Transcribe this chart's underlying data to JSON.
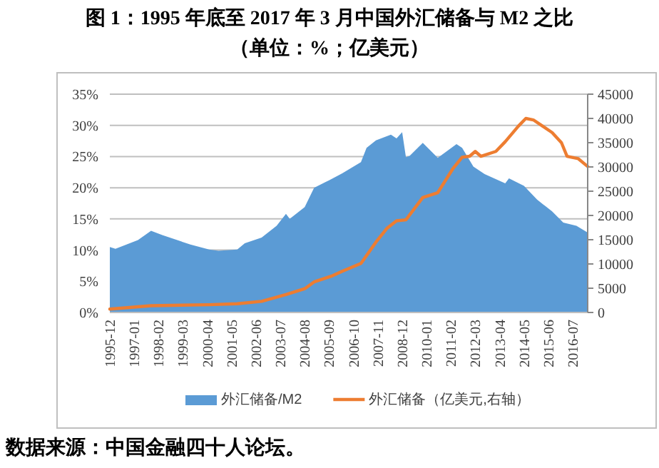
{
  "chart_data": {
    "type": "area",
    "title": "图 1：1995 年底至 2017 年 3 月中国外汇储备与 M2 之比",
    "subtitle": "（单位：%；亿美元）",
    "annotations": [
      "数据来源：中国金融四十人论坛。"
    ],
    "xlim": [
      "1995-12",
      "2017-03"
    ],
    "xticks": [
      {
        "value": "1995-12",
        "label": "1995-12"
      },
      {
        "value": "1997-01",
        "label": "1997-01"
      },
      {
        "value": "1998-02",
        "label": "1998-02"
      },
      {
        "value": "1999-03",
        "label": "1999-03"
      },
      {
        "value": "2000-04",
        "label": "2000-04"
      },
      {
        "value": "2001-05",
        "label": "2001-05"
      },
      {
        "value": "2002-06",
        "label": "2002-06"
      },
      {
        "value": "2003-07",
        "label": "2003-07"
      },
      {
        "value": "2004-08",
        "label": "2004-08"
      },
      {
        "value": "2005-09",
        "label": "2005-09"
      },
      {
        "value": "2006-10",
        "label": "2006-10"
      },
      {
        "value": "2007-11",
        "label": "2007-11"
      },
      {
        "value": "2008-12",
        "label": "2008-12"
      },
      {
        "value": "2010-01",
        "label": "2010-01"
      },
      {
        "value": "2011-02",
        "label": "2011-02"
      },
      {
        "value": "2012-03",
        "label": "2012-03"
      },
      {
        "value": "2013-04",
        "label": "2013-04"
      },
      {
        "value": "2014-05",
        "label": "2014-05"
      },
      {
        "value": "2015-06",
        "label": "2015-06"
      },
      {
        "value": "2016-07",
        "label": "2016-07"
      }
    ],
    "ylim": [
      0,
      35
    ],
    "yticks": [
      {
        "value": 0,
        "label": "0%"
      },
      {
        "value": 5,
        "label": "5%"
      },
      {
        "value": 10,
        "label": "10%"
      },
      {
        "value": 15,
        "label": "15%"
      },
      {
        "value": 20,
        "label": "20%"
      },
      {
        "value": 25,
        "label": "25%"
      },
      {
        "value": 30,
        "label": "30%"
      },
      {
        "value": 35,
        "label": "35%"
      }
    ],
    "y2lim": [
      0,
      45000
    ],
    "y2ticks": [
      0,
      5000,
      10000,
      15000,
      20000,
      25000,
      30000,
      35000,
      40000,
      45000
    ],
    "grid": "y",
    "legend": "bottom",
    "series": [
      {
        "name": "外汇储备/M2",
        "color": "#5b9bd5",
        "x": [
          "1995-12",
          "1996-03",
          "1997-03",
          "1997-10",
          "1998-04",
          "1999-07",
          "2000-05",
          "2000-10",
          "2001-08",
          "2001-12",
          "2002-09",
          "2003-05",
          "2003-10",
          "2003-12",
          "2004-08",
          "2005-01",
          "2005-09",
          "2006-04",
          "2007-02",
          "2007-05",
          "2007-10",
          "2008-06",
          "2008-09",
          "2008-12",
          "2009-02",
          "2009-04",
          "2009-11",
          "2010-07",
          "2011-05",
          "2011-08",
          "2012-02",
          "2012-08",
          "2013-07",
          "2013-09",
          "2014-05",
          "2014-12",
          "2015-08",
          "2016-02",
          "2016-09",
          "2017-03"
        ],
        "values": [
          10.5,
          10.2,
          11.6,
          13.1,
          12.4,
          10.9,
          10.1,
          9.9,
          10.1,
          11.1,
          12.0,
          13.9,
          15.8,
          15.0,
          16.9,
          20.0,
          21.2,
          22.3,
          24.1,
          26.4,
          27.6,
          28.5,
          27.9,
          28.9,
          24.9,
          25.1,
          27.2,
          24.8,
          27.0,
          26.4,
          23.4,
          22.2,
          20.7,
          21.5,
          20.3,
          18.1,
          16.2,
          14.4,
          13.9,
          12.8
        ]
      },
      {
        "name": "外汇储备（亿美元,右轴）",
        "type": "line",
        "axis": "y2",
        "color": "#ed7d31",
        "x": [
          "1995-12",
          "1997-10",
          "2000-05",
          "2001-08",
          "2002-09",
          "2003-10",
          "2004-08",
          "2005-01",
          "2005-11",
          "2006-04",
          "2007-02",
          "2007-10",
          "2008-04",
          "2008-09",
          "2009-02",
          "2009-11",
          "2010-07",
          "2011-03",
          "2011-08",
          "2011-12",
          "2012-03",
          "2012-06",
          "2013-02",
          "2013-07",
          "2014-02",
          "2014-06",
          "2014-10",
          "2015-03",
          "2015-08",
          "2016-01",
          "2016-04",
          "2016-10",
          "2017-03"
        ],
        "values": [
          700,
          1400,
          1600,
          1800,
          2300,
          3700,
          4900,
          6300,
          7600,
          8500,
          10100,
          14500,
          17400,
          18900,
          19100,
          23700,
          24700,
          29600,
          32000,
          32200,
          33200,
          32200,
          33200,
          35200,
          38400,
          40000,
          39700,
          38400,
          37100,
          35000,
          32200,
          31700,
          30100
        ]
      }
    ]
  }
}
